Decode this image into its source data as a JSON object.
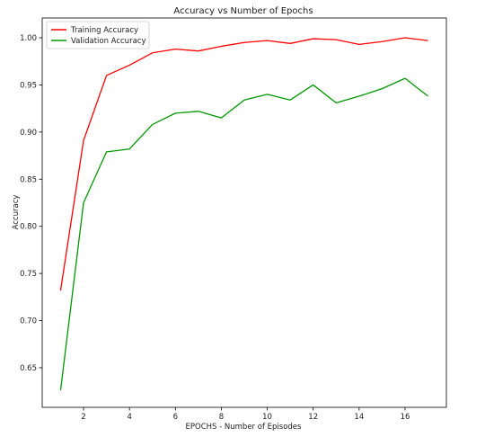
{
  "chart_data": {
    "type": "line",
    "title": "Accuracy vs Number of Epochs",
    "xlabel": "EPOCHS - Number of Episodes",
    "ylabel": "Accuracy",
    "xlim": [
      0.2,
      17.8
    ],
    "ylim": [
      0.608,
      1.021
    ],
    "xticks": [
      2,
      4,
      6,
      8,
      10,
      12,
      14,
      16
    ],
    "yticks": [
      0.65,
      0.7,
      0.75,
      0.8,
      0.85,
      0.9,
      0.95,
      1.0
    ],
    "grid": false,
    "legend_position": "top-left",
    "x": [
      1,
      2,
      3,
      4,
      5,
      6,
      7,
      8,
      9,
      10,
      11,
      12,
      13,
      14,
      15,
      16,
      17
    ],
    "series": [
      {
        "name": "Training Accuracy",
        "color": "#ff0000",
        "values": [
          0.732,
          0.891,
          0.96,
          0.971,
          0.984,
          0.988,
          0.986,
          0.991,
          0.995,
          0.997,
          0.994,
          0.999,
          0.998,
          0.993,
          0.996,
          1.0,
          0.997
        ]
      },
      {
        "name": "Validation Accuracy",
        "color": "#009900",
        "values": [
          0.626,
          0.825,
          0.879,
          0.882,
          0.908,
          0.92,
          0.922,
          0.915,
          0.934,
          0.94,
          0.934,
          0.95,
          0.931,
          0.938,
          0.946,
          0.957,
          0.938
        ]
      }
    ]
  }
}
